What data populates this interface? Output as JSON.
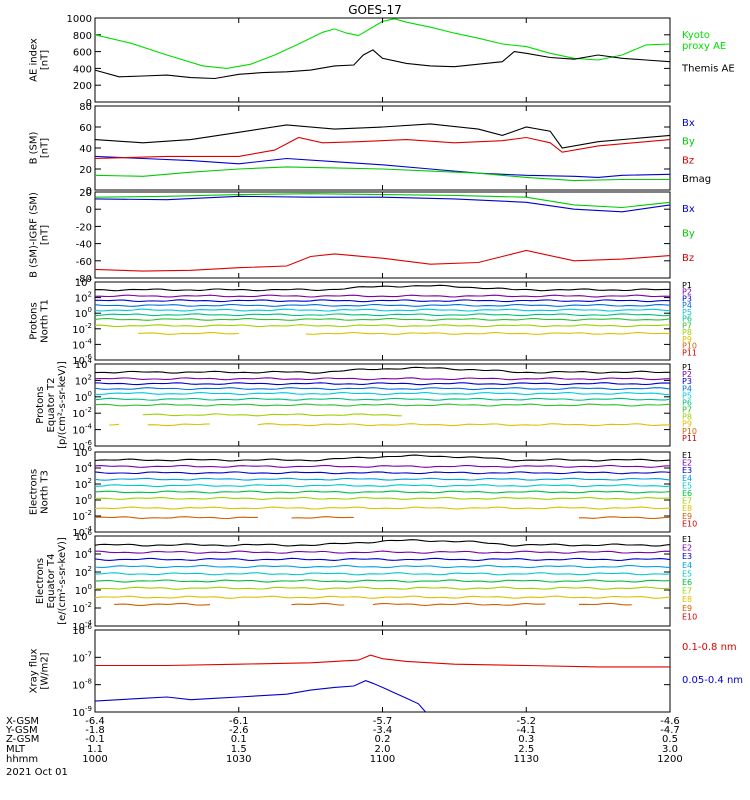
{
  "title": "GOES-17",
  "chart_data": [
    {
      "type": "line",
      "ylabel": [
        "AE index",
        "[nT]"
      ],
      "ylim": [
        0,
        1000
      ],
      "ylog": false,
      "yticks": [
        0,
        200,
        400,
        600,
        800,
        1000
      ],
      "series": [
        {
          "name": "Kyoto proxy AE",
          "legend_lines": [
            "Kyoto",
            "proxy AE"
          ],
          "color": "#00dd00",
          "x": [
            0,
            15,
            30,
            45,
            55,
            65,
            75,
            85,
            95,
            100,
            105,
            110,
            120,
            125,
            130,
            140,
            150,
            160,
            170,
            180,
            190,
            200,
            210,
            220,
            230,
            240
          ],
          "y": [
            800,
            700,
            560,
            430,
            400,
            450,
            560,
            690,
            830,
            870,
            820,
            790,
            960,
            990,
            950,
            890,
            820,
            760,
            690,
            660,
            580,
            520,
            500,
            560,
            680,
            690
          ]
        },
        {
          "name": "Themis AE",
          "legend_lines": [
            "Themis AE"
          ],
          "color": "#000000",
          "x": [
            0,
            10,
            20,
            30,
            40,
            50,
            60,
            70,
            80,
            90,
            100,
            108,
            112,
            116,
            120,
            130,
            140,
            150,
            160,
            170,
            175,
            180,
            190,
            200,
            210,
            220,
            230,
            240
          ],
          "y": [
            380,
            300,
            310,
            320,
            290,
            280,
            330,
            350,
            360,
            380,
            430,
            440,
            560,
            620,
            520,
            460,
            430,
            420,
            450,
            480,
            600,
            580,
            530,
            510,
            560,
            520,
            500,
            480
          ]
        }
      ]
    },
    {
      "type": "line",
      "ylabel": [
        "B (SM)",
        "[nT]"
      ],
      "ylim": [
        0,
        80
      ],
      "ylog": false,
      "yticks": [
        0,
        20,
        40,
        60,
        80
      ],
      "series": [
        {
          "name": "Bx",
          "legend_lines": [
            "Bx"
          ],
          "color": "#0000cc",
          "x": [
            0,
            20,
            40,
            60,
            80,
            100,
            120,
            140,
            160,
            180,
            200,
            210,
            220,
            240
          ],
          "y": [
            32,
            30,
            28,
            25,
            30,
            27,
            24,
            20,
            16,
            14,
            13,
            12,
            14,
            15
          ]
        },
        {
          "name": "By",
          "legend_lines": [
            "By"
          ],
          "color": "#00cc00",
          "x": [
            0,
            20,
            40,
            60,
            80,
            100,
            120,
            140,
            160,
            180,
            200,
            220,
            240
          ],
          "y": [
            14,
            13,
            17,
            20,
            22,
            21,
            20,
            18,
            16,
            12,
            9,
            10,
            10
          ]
        },
        {
          "name": "Bz",
          "legend_lines": [
            "Bz"
          ],
          "color": "#dd0000",
          "x": [
            0,
            30,
            60,
            75,
            85,
            95,
            110,
            130,
            150,
            170,
            180,
            190,
            195,
            210,
            240
          ],
          "y": [
            30,
            32,
            32,
            38,
            50,
            45,
            46,
            48,
            45,
            47,
            50,
            45,
            36,
            42,
            48
          ]
        },
        {
          "name": "Bmag",
          "legend_lines": [
            "Bmag"
          ],
          "color": "#000000",
          "x": [
            0,
            20,
            40,
            60,
            80,
            100,
            120,
            140,
            160,
            170,
            180,
            190,
            195,
            210,
            240
          ],
          "y": [
            48,
            45,
            48,
            55,
            62,
            58,
            60,
            63,
            58,
            52,
            60,
            56,
            40,
            46,
            52
          ]
        }
      ]
    },
    {
      "type": "line",
      "ylabel": [
        "B (SM)-IGRF (SM)",
        "[nT]"
      ],
      "ylim": [
        -80,
        20
      ],
      "ylog": false,
      "yticks": [
        -80,
        -60,
        -40,
        -20,
        0,
        20
      ],
      "series": [
        {
          "name": "Bx",
          "legend_lines": [
            "Bx"
          ],
          "color": "#0000cc",
          "x": [
            0,
            30,
            60,
            90,
            120,
            150,
            180,
            200,
            220,
            240
          ],
          "y": [
            12,
            11,
            15,
            14,
            14,
            12,
            8,
            0,
            -3,
            5
          ]
        },
        {
          "name": "By",
          "legend_lines": [
            "By"
          ],
          "color": "#00cc00",
          "x": [
            0,
            30,
            60,
            90,
            120,
            150,
            180,
            200,
            220,
            240
          ],
          "y": [
            14,
            15,
            17,
            18,
            17,
            16,
            14,
            5,
            2,
            8
          ]
        },
        {
          "name": "Bz",
          "legend_lines": [
            "Bz"
          ],
          "color": "#dd0000",
          "x": [
            0,
            20,
            40,
            60,
            80,
            90,
            100,
            120,
            140,
            160,
            170,
            180,
            200,
            220,
            240
          ],
          "y": [
            -70,
            -72,
            -71,
            -68,
            -66,
            -55,
            -52,
            -57,
            -64,
            -62,
            -55,
            -48,
            -60,
            -58,
            -54
          ]
        }
      ]
    },
    {
      "type": "line",
      "ylabel": [
        "Protons",
        "North T1"
      ],
      "ylim": [
        -6,
        4
      ],
      "ylog": true,
      "yticks": [
        4,
        2,
        0,
        -2,
        -4,
        -6
      ],
      "channels": [
        "P1",
        "P2",
        "P3",
        "P4",
        "P5",
        "P6",
        "P7",
        "P8",
        "P9",
        "P10",
        "P11"
      ],
      "levels": [
        3.0,
        2.2,
        1.6,
        1.0,
        0.4,
        -0.2,
        -0.8,
        -1.6,
        -2.6,
        null,
        null
      ],
      "gaps": [
        [],
        [],
        [],
        [],
        [],
        [],
        [],
        [],
        [
          [
            0,
            16
          ],
          [
            62,
            86
          ]
        ],
        [],
        []
      ]
    },
    {
      "type": "line",
      "ylabel": [
        "Protons",
        "Equator T2",
        "[p/(cm²-s-sr-keV)]"
      ],
      "ylim": [
        -6,
        4
      ],
      "ylog": true,
      "yticks": [
        4,
        2,
        0,
        -2,
        -4,
        -6
      ],
      "channels": [
        "P1",
        "P2",
        "P3",
        "P4",
        "P5",
        "P6",
        "P7",
        "P8",
        "P9",
        "P10",
        "P11"
      ],
      "levels": [
        3.0,
        2.2,
        1.6,
        1.0,
        0.4,
        -0.3,
        -1.0,
        -2.2,
        -3.4,
        null,
        null
      ],
      "gaps": [
        [],
        [],
        [],
        [],
        [],
        [],
        [],
        [
          [
            0,
            18
          ],
          [
            130,
            240
          ]
        ],
        [
          [
            0,
            4
          ],
          [
            12,
            20
          ],
          [
            50,
            66
          ]
        ],
        [],
        []
      ]
    },
    {
      "type": "line",
      "ylabel": [
        "Electrons",
        "North T3"
      ],
      "ylim": [
        -4,
        6
      ],
      "ylog": true,
      "yticks": [
        6,
        4,
        2,
        0,
        -2,
        -4
      ],
      "channels": [
        "E1",
        "E2",
        "E3",
        "E4",
        "E5",
        "E6",
        "E7",
        "E8",
        "E9",
        "E10"
      ],
      "levels": [
        5.0,
        4.2,
        3.4,
        2.6,
        1.8,
        1.0,
        0.2,
        -1.0,
        -2.2,
        null
      ],
      "gaps": [
        [],
        [],
        [],
        [],
        [],
        [],
        [],
        [],
        [
          [
            70,
            80
          ],
          [
            110,
            120
          ],
          [
            120,
            160
          ],
          [
            160,
            200
          ]
        ],
        []
      ]
    },
    {
      "type": "line",
      "ylabel": [
        "Electrons",
        "Equator T4",
        "[e/(cm²-s-sr-keV)]"
      ],
      "ylim": [
        -4,
        6
      ],
      "ylog": true,
      "yticks": [
        6,
        4,
        2,
        0,
        -2,
        -4
      ],
      "channels": [
        "E1",
        "E2",
        "E3",
        "E4",
        "E5",
        "E6",
        "E7",
        "E8",
        "E9",
        "E10"
      ],
      "levels": [
        5.0,
        4.2,
        3.4,
        2.6,
        1.8,
        1.0,
        0.2,
        -0.8,
        -1.6,
        null
      ],
      "gaps": [
        [],
        [],
        [],
        [],
        [],
        [],
        [],
        [],
        [
          [
            0,
            6
          ],
          [
            50,
            80
          ],
          [
            105,
            115
          ],
          [
            190,
            200
          ],
          [
            225,
            240
          ]
        ],
        []
      ]
    },
    {
      "type": "line",
      "ylabel": [
        "Xray flux",
        "[W/m2]"
      ],
      "ylim": [
        -9,
        -6
      ],
      "ylog": true,
      "yticks": [
        -9,
        -8,
        -7,
        -6
      ],
      "series": [
        {
          "name": "0.1-0.8 nm",
          "legend_lines": [
            "0.1-0.8 nm"
          ],
          "color": "#dd0000",
          "x": [
            0,
            30,
            60,
            90,
            110,
            115,
            120,
            130,
            150,
            180,
            210,
            240
          ],
          "y": [
            -7.3,
            -7.3,
            -7.25,
            -7.2,
            -7.1,
            -6.92,
            -7.05,
            -7.15,
            -7.25,
            -7.3,
            -7.35,
            -7.35
          ]
        },
        {
          "name": "0.05-0.4 nm",
          "legend_lines": [
            "0.05-0.4 nm"
          ],
          "color": "#0000cc",
          "x": [
            0,
            10,
            20,
            30,
            40,
            50,
            60,
            70,
            80,
            90,
            100,
            108,
            113,
            116,
            120,
            125,
            130,
            135,
            138
          ],
          "y": [
            -8.6,
            -8.55,
            -8.5,
            -8.45,
            -8.55,
            -8.5,
            -8.45,
            -8.4,
            -8.35,
            -8.2,
            -8.1,
            -8.05,
            -7.85,
            -7.95,
            -8.1,
            -8.3,
            -8.5,
            -8.7,
            -9.0
          ]
        }
      ]
    }
  ],
  "x_axis": {
    "rows": [
      "X-GSM",
      "Y-GSM",
      "Z-GSM",
      "MLT",
      "hhmm"
    ],
    "ticks": [
      {
        "t": 0,
        "values": [
          "-6.4",
          "-1.8",
          "-0.1",
          "1.1",
          "1000"
        ]
      },
      {
        "t": 60,
        "values": [
          "-6.1",
          "-2.6",
          "0.1",
          "1.5",
          "1030"
        ]
      },
      {
        "t": 120,
        "values": [
          "-5.7",
          "-3.4",
          "0.2",
          "2.0",
          "1100"
        ]
      },
      {
        "t": 180,
        "values": [
          "-5.2",
          "-4.1",
          "0.3",
          "2.5",
          "1130"
        ]
      },
      {
        "t": 240,
        "values": [
          "-4.6",
          "-4.7",
          "0.5",
          "3.0",
          "1200"
        ]
      }
    ],
    "date": "2021 Oct 01",
    "range": [
      0,
      240
    ]
  },
  "palette_p": [
    "#000000",
    "#7a00a8",
    "#0000d0",
    "#0070e0",
    "#00c8e0",
    "#00c080",
    "#30c030",
    "#a0d000",
    "#e0c000",
    "#d06000",
    "#d00000"
  ],
  "palette_e": [
    "#000000",
    "#7a00a8",
    "#0000d0",
    "#00a0e0",
    "#00c8d0",
    "#00c040",
    "#a0d000",
    "#e0c000",
    "#d06000",
    "#d00000"
  ]
}
